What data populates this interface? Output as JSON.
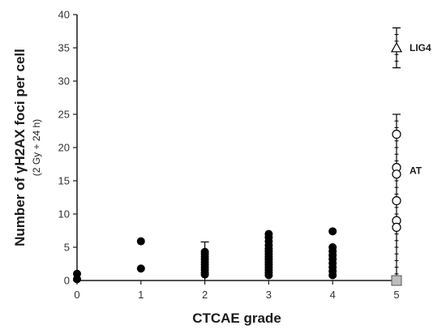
{
  "chart_data": {
    "type": "scatter",
    "xlabel": "CTCAE grade",
    "ylabel": "Number of γH2AX foci per cell",
    "ylabel_sub": "(2 Gy + 24 h)",
    "xlim": [
      0,
      5
    ],
    "ylim": [
      0,
      40
    ],
    "x_ticks": [
      0,
      1,
      2,
      3,
      4,
      5
    ],
    "y_ticks": [
      0,
      5,
      10,
      15,
      20,
      25,
      30,
      35,
      40
    ],
    "grid": false,
    "colors": {
      "marker": "#000000",
      "axis": "#1a1a1a",
      "square_fill": "#bdbdbd"
    },
    "series": [
      {
        "marker": "filled-circle",
        "points": [
          {
            "x": 0,
            "y": 0.2
          },
          {
            "x": 0,
            "y": 1.0
          },
          {
            "x": 1,
            "y": 1.8
          },
          {
            "x": 1,
            "y": 5.9
          },
          {
            "x": 2,
            "y": 0.9
          },
          {
            "x": 2,
            "y": 1.2
          },
          {
            "x": 2,
            "y": 1.6
          },
          {
            "x": 2,
            "y": 2.0
          },
          {
            "x": 2,
            "y": 2.4
          },
          {
            "x": 2,
            "y": 2.8
          },
          {
            "x": 2,
            "y": 3.2
          },
          {
            "x": 2,
            "y": 3.6
          },
          {
            "x": 2,
            "y": 4.0
          },
          {
            "x": 2,
            "y": 4.3
          },
          {
            "x": 3,
            "y": 0.8
          },
          {
            "x": 3,
            "y": 1.2
          },
          {
            "x": 3,
            "y": 1.6
          },
          {
            "x": 3,
            "y": 2.0
          },
          {
            "x": 3,
            "y": 2.4
          },
          {
            "x": 3,
            "y": 2.8
          },
          {
            "x": 3,
            "y": 3.2
          },
          {
            "x": 3,
            "y": 3.6
          },
          {
            "x": 3,
            "y": 4.0
          },
          {
            "x": 3,
            "y": 4.4
          },
          {
            "x": 3,
            "y": 4.8
          },
          {
            "x": 3,
            "y": 5.3
          },
          {
            "x": 3,
            "y": 5.9
          },
          {
            "x": 3,
            "y": 6.5
          },
          {
            "x": 3,
            "y": 7.0
          },
          {
            "x": 4,
            "y": 0.8
          },
          {
            "x": 4,
            "y": 1.4
          },
          {
            "x": 4,
            "y": 2.0
          },
          {
            "x": 4,
            "y": 2.6
          },
          {
            "x": 4,
            "y": 3.2
          },
          {
            "x": 4,
            "y": 3.8
          },
          {
            "x": 4,
            "y": 4.4
          },
          {
            "x": 4,
            "y": 5.0
          },
          {
            "x": 4,
            "y": 7.4
          }
        ]
      },
      {
        "marker": "open-circle",
        "label": "AT",
        "points": [
          {
            "x": 5,
            "y": 22
          },
          {
            "x": 5,
            "y": 17
          },
          {
            "x": 5,
            "y": 16
          },
          {
            "x": 5,
            "y": 12
          },
          {
            "x": 5,
            "y": 9
          },
          {
            "x": 5,
            "y": 8
          }
        ],
        "range": [
          0,
          25
        ]
      },
      {
        "marker": "open-triangle",
        "label": "LIG4",
        "points": [
          {
            "x": 5,
            "y": 35
          }
        ],
        "range": [
          32,
          38
        ]
      },
      {
        "marker": "filled-square",
        "points": [
          {
            "x": 5,
            "y": 0
          }
        ]
      }
    ],
    "error_bars": [
      {
        "x": 2,
        "low": 0,
        "high": 5.8
      }
    ]
  }
}
